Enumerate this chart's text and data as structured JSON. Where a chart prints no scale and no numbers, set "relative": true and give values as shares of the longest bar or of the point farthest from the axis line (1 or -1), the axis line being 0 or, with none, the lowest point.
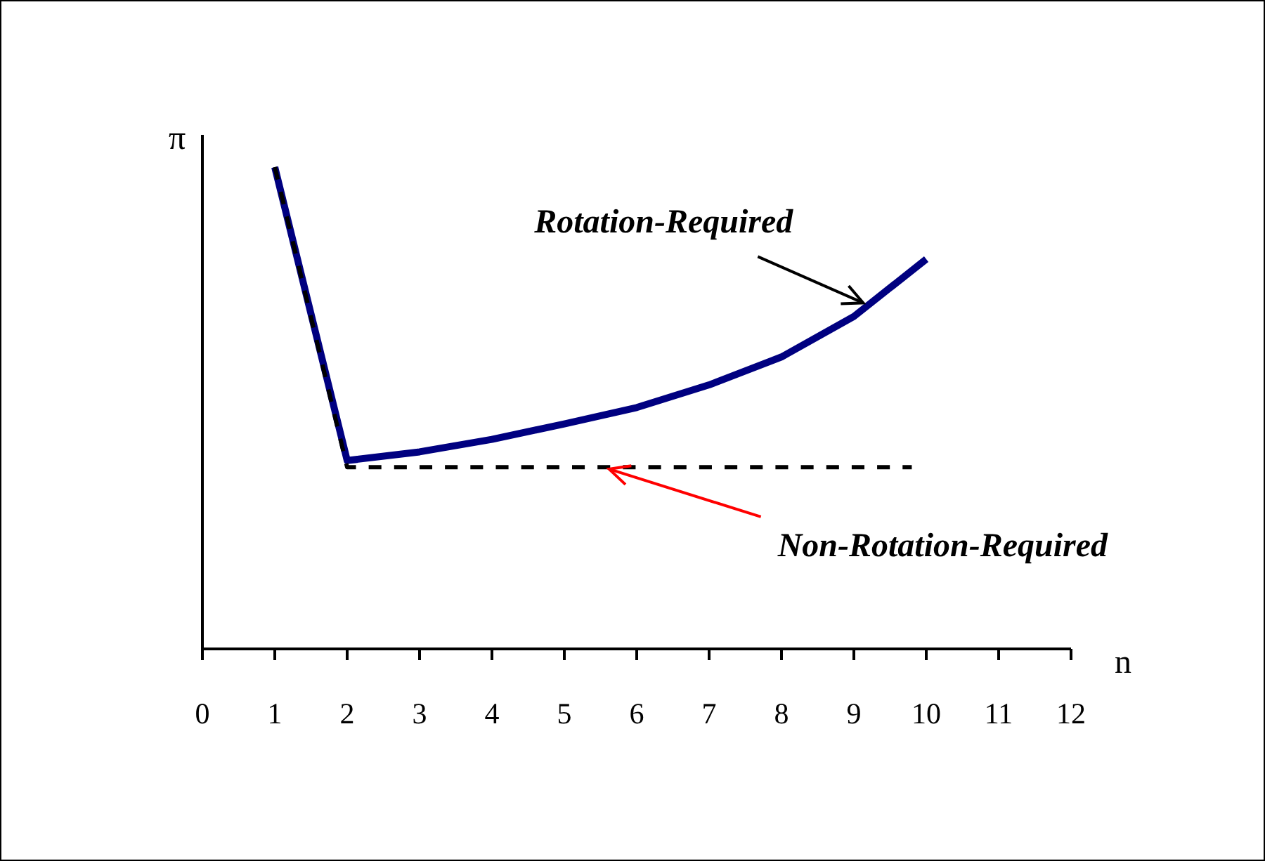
{
  "chart_data": {
    "type": "line",
    "relative": true,
    "xlabel": "n",
    "ylabel": "π",
    "xlim": [
      0,
      12
    ],
    "xticks": [
      0,
      1,
      2,
      3,
      4,
      5,
      6,
      7,
      8,
      9,
      10,
      11,
      12
    ],
    "grid": false,
    "legend": false,
    "marker": "none",
    "series": [
      {
        "color": "#000080",
        "line_style": "solid",
        "x": [
          1,
          2,
          3,
          4,
          5,
          6,
          7,
          8,
          9,
          10
        ],
        "values": [
          1,
          0.391,
          0.409,
          0.435,
          0.467,
          0.501,
          0.548,
          0.606,
          0.69,
          0.809
        ]
      },
      {
        "color": "#000000",
        "line_style": "dashed",
        "x": [
          1,
          2,
          9.8
        ],
        "values": [
          1,
          0.377,
          0.377
        ]
      }
    ],
    "annotations": [
      {
        "text": "Rotation-Required",
        "x": 9.1,
        "y": 0.72
      },
      {
        "text": "Non-Rotation-Required",
        "x": 5.6,
        "y": 0.377
      }
    ]
  }
}
